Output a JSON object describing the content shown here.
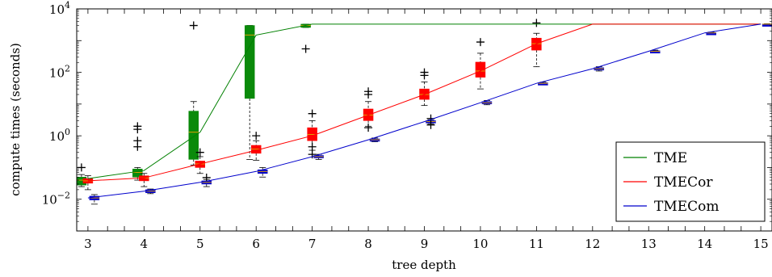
{
  "chart_data": {
    "type": "line",
    "title": "",
    "xlabel": "tree depth",
    "ylabel": "compute times (seconds)",
    "x": [
      3,
      4,
      5,
      6,
      7,
      8,
      9,
      10,
      11,
      12,
      13,
      14,
      15
    ],
    "xlim": [
      2.8,
      15.2
    ],
    "ylim": [
      0.001,
      10000
    ],
    "yscale": "log",
    "yticks": [
      {
        "value": 0.01,
        "base": "10",
        "exp": "−2"
      },
      {
        "value": 1,
        "base": "10",
        "exp": "0"
      },
      {
        "value": 100,
        "base": "10",
        "exp": "2"
      },
      {
        "value": 10000,
        "base": "10",
        "exp": "4"
      }
    ],
    "grid": false,
    "legend_position": "bottom-right",
    "series": [
      {
        "name": "TME",
        "color": "#008000",
        "x": [
          3,
          4,
          5,
          6,
          7,
          8,
          9,
          10,
          11,
          12,
          13,
          14,
          15
        ],
        "y": [
          0.045,
          0.08,
          1.3,
          1500,
          3300,
          3300,
          3300,
          3300,
          3300,
          3300,
          3300,
          3300,
          3300
        ],
        "boxes": [
          {
            "x": 3,
            "q1": 0.028,
            "median": 0.04,
            "q3": 0.05,
            "whislo": 0.025,
            "whishi": 0.06,
            "fliers": [
              0.1
            ]
          },
          {
            "x": 4,
            "q1": 0.05,
            "median": 0.07,
            "q3": 0.09,
            "whislo": 0.04,
            "whishi": 0.1,
            "fliers": [
              0.45,
              0.7,
              1.6,
              2.0
            ]
          },
          {
            "x": 5,
            "q1": 0.18,
            "median": 1.3,
            "q3": 6,
            "whislo": 0.12,
            "whishi": 12,
            "fliers": [
              3000
            ]
          },
          {
            "x": 6,
            "q1": 15,
            "median": 1500,
            "q3": 3000,
            "whislo": 0.18,
            "whishi": 3000,
            "fliers": []
          },
          {
            "x": 7,
            "q1": 2600,
            "median": 3000,
            "q3": 3300,
            "whislo": 2600,
            "whishi": 3300,
            "fliers": [
              550
            ]
          }
        ]
      },
      {
        "name": "TMECor",
        "color": "#ff0000",
        "x": [
          3,
          4,
          5,
          6,
          7,
          8,
          9,
          10,
          11,
          12,
          13,
          14,
          15
        ],
        "y": [
          0.038,
          0.047,
          0.13,
          0.35,
          1.0,
          4.5,
          20,
          110,
          800,
          3300,
          3300,
          3300,
          3300
        ],
        "boxes": [
          {
            "x": 3,
            "q1": 0.032,
            "median": 0.038,
            "q3": 0.045,
            "whislo": 0.02,
            "whishi": 0.055,
            "fliers": []
          },
          {
            "x": 4,
            "q1": 0.038,
            "median": 0.047,
            "q3": 0.055,
            "whislo": 0.025,
            "whishi": 0.065,
            "fliers": []
          },
          {
            "x": 5,
            "q1": 0.1,
            "median": 0.13,
            "q3": 0.16,
            "whislo": 0.065,
            "whishi": 0.22,
            "fliers": [
              0.3
            ]
          },
          {
            "x": 6,
            "q1": 0.28,
            "median": 0.38,
            "q3": 0.5,
            "whislo": 0.17,
            "whishi": 0.7,
            "fliers": [
              1.0
            ]
          },
          {
            "x": 7,
            "q1": 0.7,
            "median": 1.1,
            "q3": 1.8,
            "whislo": 0.35,
            "whishi": 3,
            "fliers": [
              0.26,
              0.45,
              5
            ]
          },
          {
            "x": 8,
            "q1": 3,
            "median": 4.5,
            "q3": 7,
            "whislo": 2,
            "whishi": 12,
            "fliers": [
              1.8,
              20,
              25
            ]
          },
          {
            "x": 9,
            "q1": 14,
            "median": 20,
            "q3": 30,
            "whislo": 9,
            "whishi": 50,
            "fliers": [
              80,
              100
            ]
          },
          {
            "x": 10,
            "q1": 70,
            "median": 110,
            "q3": 210,
            "whislo": 30,
            "whishi": 400,
            "fliers": [
              900
            ]
          },
          {
            "x": 11,
            "q1": 500,
            "median": 800,
            "q3": 1200,
            "whislo": 150,
            "whishi": 1700,
            "fliers": [
              3600
            ]
          }
        ]
      },
      {
        "name": "TMECom",
        "color": "#0000cc",
        "x": [
          3,
          4,
          5,
          6,
          7,
          8,
          9,
          10,
          11,
          12,
          13,
          14,
          15
        ],
        "y": [
          0.011,
          0.018,
          0.034,
          0.075,
          0.22,
          0.75,
          2.8,
          11,
          45,
          130,
          460,
          1750,
          3300
        ],
        "boxes": [
          {
            "x": 3,
            "q1": 0.0095,
            "median": 0.011,
            "q3": 0.0125,
            "whislo": 0.007,
            "whishi": 0.014,
            "fliers": []
          },
          {
            "x": 4,
            "q1": 0.016,
            "median": 0.018,
            "q3": 0.02,
            "whislo": 0.015,
            "whishi": 0.021,
            "fliers": []
          },
          {
            "x": 5,
            "q1": 0.03,
            "median": 0.034,
            "q3": 0.038,
            "whislo": 0.025,
            "whishi": 0.042,
            "fliers": [
              0.048
            ]
          },
          {
            "x": 6,
            "q1": 0.065,
            "median": 0.075,
            "q3": 0.085,
            "whislo": 0.05,
            "whishi": 0.1,
            "fliers": []
          },
          {
            "x": 7,
            "q1": 0.2,
            "median": 0.22,
            "q3": 0.24,
            "whislo": 0.18,
            "whishi": 0.26,
            "fliers": []
          },
          {
            "x": 8,
            "q1": 0.7,
            "median": 0.75,
            "q3": 0.8,
            "whislo": 0.65,
            "whishi": 0.85,
            "fliers": []
          },
          {
            "x": 9,
            "q1": 2.6,
            "median": 2.8,
            "q3": 3.0,
            "whislo": 2.4,
            "whishi": 3.2,
            "fliers": [
              2.2,
              3.5
            ]
          },
          {
            "x": 10,
            "q1": 10.5,
            "median": 11,
            "q3": 12,
            "whislo": 9.5,
            "whishi": 13,
            "fliers": []
          },
          {
            "x": 11,
            "q1": 43,
            "median": 45,
            "q3": 47,
            "whislo": 41,
            "whishi": 49,
            "fliers": []
          },
          {
            "x": 12,
            "q1": 120,
            "median": 130,
            "q3": 140,
            "whislo": 110,
            "whishi": 150,
            "fliers": []
          },
          {
            "x": 13,
            "q1": 440,
            "median": 460,
            "q3": 480,
            "whislo": 420,
            "whishi": 500,
            "fliers": []
          },
          {
            "x": 14,
            "q1": 1700,
            "median": 1750,
            "q3": 1800,
            "whislo": 1650,
            "whishi": 1850,
            "fliers": []
          },
          {
            "x": 15,
            "q1": 3250,
            "median": 3300,
            "q3": 3350,
            "whislo": 3200,
            "whishi": 3400,
            "fliers": []
          }
        ]
      }
    ]
  }
}
